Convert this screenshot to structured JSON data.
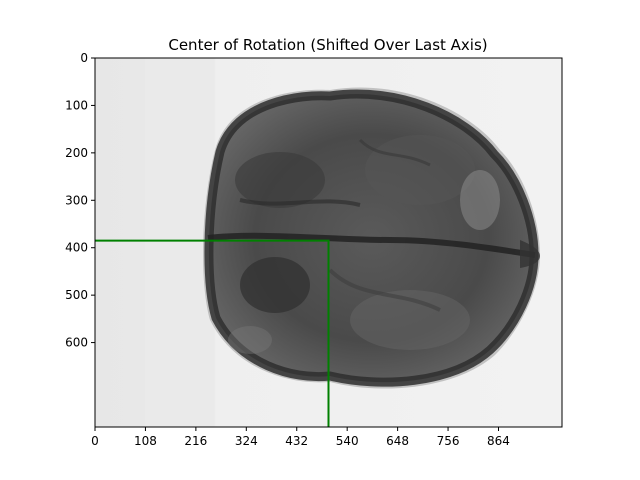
{
  "figure": {
    "title": "Center of Rotation (Shifted Over Last Axis)"
  },
  "chart_data": {
    "type": "image",
    "title": "Center of Rotation (Shifted Over Last Axis)",
    "xlabel": "",
    "ylabel": "",
    "image_width": 1000,
    "image_height": 778,
    "x_ticks": [
      0,
      108,
      216,
      324,
      432,
      540,
      648,
      756,
      864
    ],
    "y_ticks": [
      0,
      100,
      200,
      300,
      400,
      500,
      600
    ],
    "center_of_rotation": {
      "x": 500,
      "y": 385
    },
    "crosshair_color": "#008000",
    "image_description_colors": {
      "background": "#efefef",
      "object_dark": "#2e2e2e"
    }
  }
}
